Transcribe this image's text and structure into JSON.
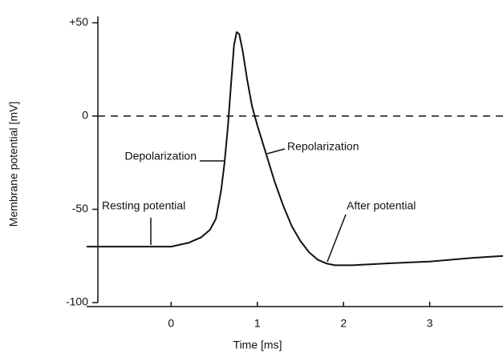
{
  "chart_data": {
    "type": "line",
    "xlabel": "Time [ms]",
    "ylabel": "Membrane potential [mV]",
    "x": [
      -0.98,
      0,
      0.2,
      0.35,
      0.45,
      0.52,
      0.58,
      0.62,
      0.66,
      0.7,
      0.73,
      0.76,
      0.79,
      0.83,
      0.88,
      0.94,
      1.0,
      1.1,
      1.2,
      1.3,
      1.4,
      1.5,
      1.6,
      1.7,
      1.8,
      1.9,
      2.1,
      2.5,
      3.0,
      3.5,
      3.85
    ],
    "values": [
      -70,
      -70,
      -68,
      -65,
      -61,
      -55,
      -40,
      -25,
      -5,
      20,
      38,
      45,
      44,
      35,
      20,
      5,
      -5,
      -20,
      -35,
      -48,
      -59,
      -67,
      -73,
      -77,
      -79,
      -80,
      -80,
      -79,
      -78,
      -76,
      -75
    ],
    "color": "#111111",
    "xlim": [
      -0.98,
      3.85
    ],
    "xticks": [
      0,
      1,
      2,
      3
    ],
    "ylim": [
      -100,
      50
    ],
    "yticks": [
      -100,
      -50,
      0,
      {
        "value": 50,
        "label": "+50"
      }
    ],
    "hline": 0,
    "annotations": [
      "Depolarization",
      "Repolarization",
      "Resting potential",
      "After potential"
    ]
  }
}
